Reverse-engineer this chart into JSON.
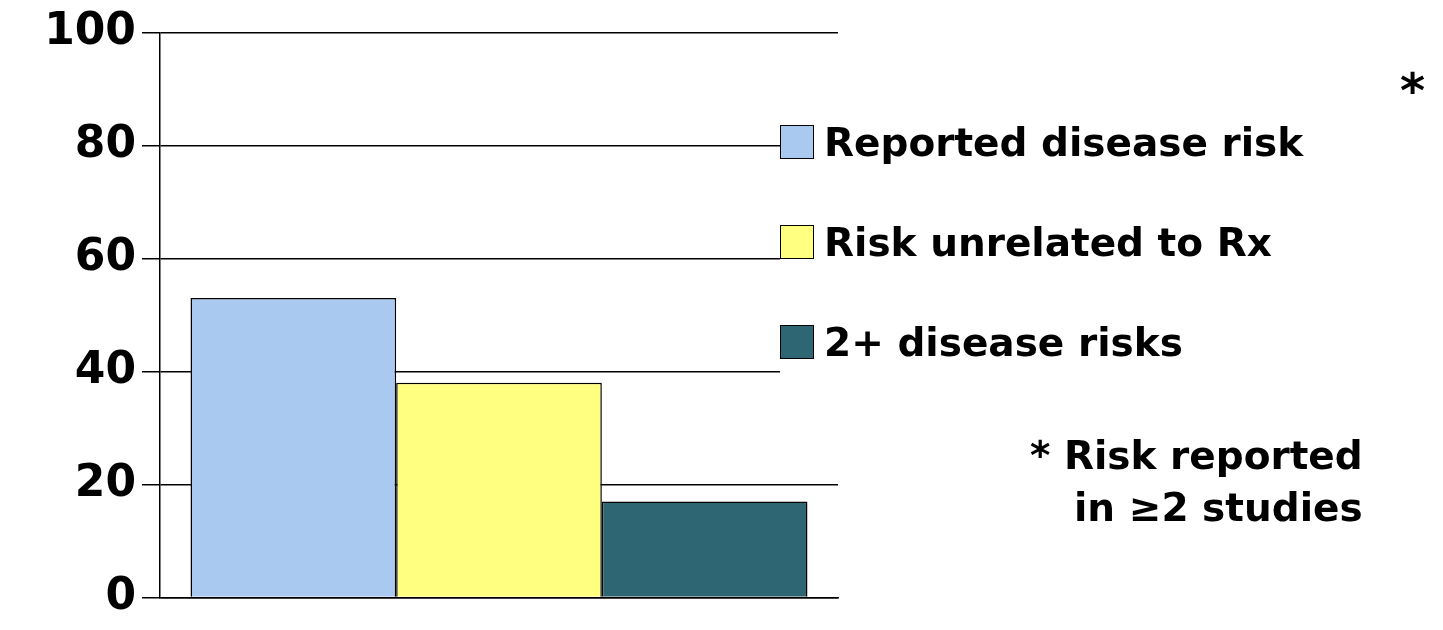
{
  "chart_data": {
    "type": "bar",
    "categories": [
      null
    ],
    "series": [
      {
        "name": "Reported disease risk",
        "color": "#a9c9f0",
        "values": [
          53
        ]
      },
      {
        "name": "Risk unrelated to Rx",
        "color": "#ffff80",
        "values": [
          38
        ]
      },
      {
        "name": "2+ disease risks",
        "color": "#2e6673",
        "values": [
          17
        ]
      }
    ],
    "ylim": [
      0,
      100
    ],
    "yticks": [
      0,
      20,
      40,
      60,
      80,
      100
    ],
    "grid": "y",
    "legend": "right",
    "tick_labels": "y",
    "annotations": [
      "*",
      "* Risk reported in ≥2 studies"
    ]
  }
}
